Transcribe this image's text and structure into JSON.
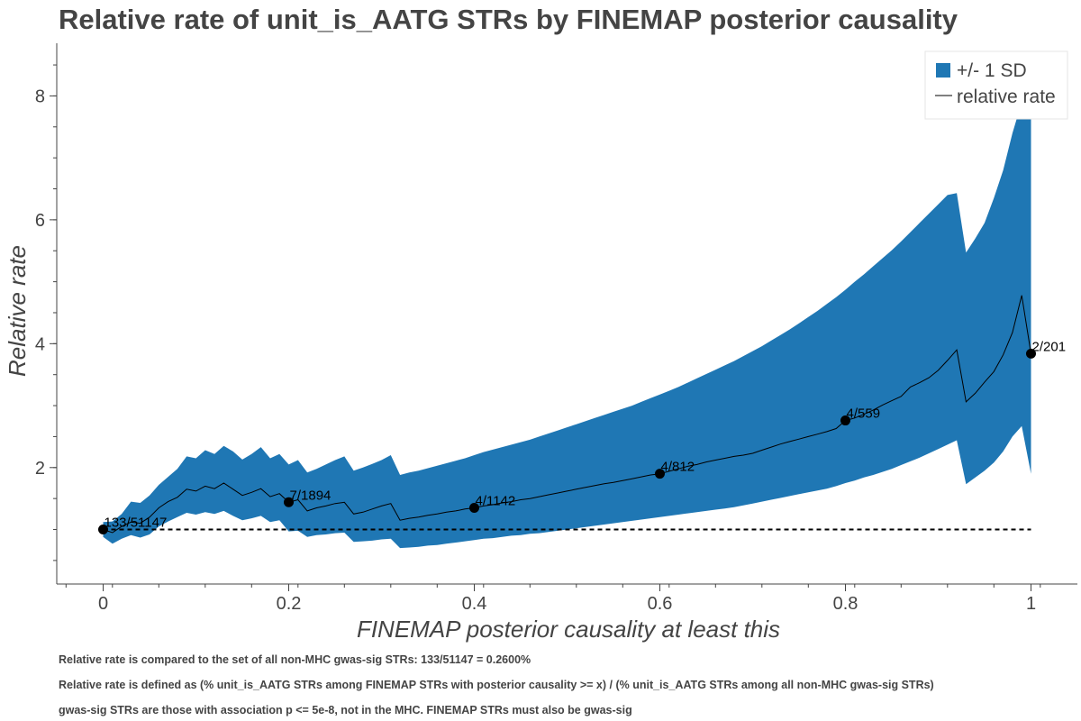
{
  "title": "Relative rate of unit_is_AATG STRs by FINEMAP posterior causality",
  "notes": [
    "Relative rate is compared to the set of all non-MHC gwas-sig STRs: 133/51147 = 0.2600%",
    "Relative rate is defined as (% unit_is_AATG STRs among FINEMAP STRs with posterior causality >= x) / (% unit_is_AATG STRs among all non-MHC gwas-sig STRs)",
    "gwas-sig STRs are those with association p <= 5e-8, not in the MHC. FINEMAP STRs must also be gwas-sig"
  ],
  "colors": {
    "band": "#1f77b4",
    "line": "#000000",
    "text": "#444444",
    "axis": "#444444"
  },
  "chart_data": {
    "type": "area",
    "xlabel": "FINEMAP posterior causality at least this",
    "ylabel": "Relative rate",
    "xlim": [
      -0.05,
      1.05
    ],
    "ylim": [
      0.12,
      8.85
    ],
    "xticks": [
      0,
      0.2,
      0.4,
      0.6,
      0.8,
      1
    ],
    "xtick_labels": [
      "0",
      "0.2",
      "0.4",
      "0.6",
      "0.8",
      "1"
    ],
    "yticks": [
      2,
      4,
      6,
      8
    ],
    "ytick_labels": [
      "2",
      "4",
      "6",
      "8"
    ],
    "legend": {
      "placement": "top-right",
      "entries": [
        "+/- 1 SD",
        "relative rate"
      ]
    },
    "reference_line": {
      "y": 1,
      "x_range": [
        0,
        1
      ],
      "style": "dashed"
    },
    "series": [
      {
        "name": "relative rate",
        "x": [
          0,
          0.01,
          0.02,
          0.03,
          0.04,
          0.05,
          0.06,
          0.07,
          0.08,
          0.09,
          0.1,
          0.11,
          0.12,
          0.13,
          0.14,
          0.15,
          0.16,
          0.17,
          0.18,
          0.19,
          0.2,
          0.21,
          0.22,
          0.23,
          0.24,
          0.25,
          0.26,
          0.27,
          0.28,
          0.29,
          0.3,
          0.31,
          0.32,
          0.33,
          0.34,
          0.35,
          0.36,
          0.37,
          0.38,
          0.39,
          0.4,
          0.41,
          0.42,
          0.43,
          0.44,
          0.45,
          0.46,
          0.47,
          0.48,
          0.49,
          0.5,
          0.51,
          0.52,
          0.53,
          0.54,
          0.55,
          0.56,
          0.57,
          0.58,
          0.59,
          0.6,
          0.61,
          0.62,
          0.63,
          0.64,
          0.65,
          0.66,
          0.67,
          0.68,
          0.69,
          0.7,
          0.71,
          0.72,
          0.73,
          0.74,
          0.75,
          0.76,
          0.77,
          0.78,
          0.79,
          0.8,
          0.81,
          0.82,
          0.83,
          0.84,
          0.85,
          0.86,
          0.87,
          0.88,
          0.89,
          0.9,
          0.91,
          0.92,
          0.93,
          0.94,
          0.95,
          0.96,
          0.97,
          0.98,
          0.99,
          1.0
        ],
        "y": [
          1.0,
          0.95,
          1.05,
          1.12,
          1.1,
          1.2,
          1.35,
          1.45,
          1.52,
          1.65,
          1.62,
          1.7,
          1.66,
          1.75,
          1.65,
          1.55,
          1.6,
          1.66,
          1.53,
          1.58,
          1.44,
          1.48,
          1.3,
          1.35,
          1.38,
          1.42,
          1.44,
          1.25,
          1.28,
          1.33,
          1.38,
          1.42,
          1.15,
          1.18,
          1.2,
          1.23,
          1.25,
          1.28,
          1.3,
          1.33,
          1.35,
          1.38,
          1.4,
          1.43,
          1.45,
          1.48,
          1.5,
          1.53,
          1.56,
          1.59,
          1.62,
          1.65,
          1.68,
          1.71,
          1.74,
          1.76,
          1.79,
          1.82,
          1.85,
          1.88,
          1.9,
          1.94,
          1.98,
          2.02,
          2.05,
          2.09,
          2.12,
          2.15,
          2.18,
          2.2,
          2.23,
          2.28,
          2.33,
          2.38,
          2.42,
          2.46,
          2.5,
          2.54,
          2.58,
          2.63,
          2.76,
          2.8,
          2.86,
          2.93,
          3.01,
          3.08,
          3.15,
          3.3,
          3.37,
          3.45,
          3.57,
          3.73,
          3.9,
          3.06,
          3.2,
          3.38,
          3.55,
          3.82,
          4.18,
          4.78,
          3.84
        ]
      },
      {
        "name": "+/- 1 SD",
        "x": [
          0,
          0.01,
          0.02,
          0.03,
          0.04,
          0.05,
          0.06,
          0.07,
          0.08,
          0.09,
          0.1,
          0.11,
          0.12,
          0.13,
          0.14,
          0.15,
          0.16,
          0.17,
          0.18,
          0.19,
          0.2,
          0.21,
          0.22,
          0.23,
          0.24,
          0.25,
          0.26,
          0.27,
          0.28,
          0.29,
          0.3,
          0.31,
          0.32,
          0.33,
          0.34,
          0.35,
          0.36,
          0.37,
          0.38,
          0.39,
          0.4,
          0.41,
          0.42,
          0.43,
          0.44,
          0.45,
          0.46,
          0.47,
          0.48,
          0.49,
          0.5,
          0.51,
          0.52,
          0.53,
          0.54,
          0.55,
          0.56,
          0.57,
          0.58,
          0.59,
          0.6,
          0.61,
          0.62,
          0.63,
          0.64,
          0.65,
          0.66,
          0.67,
          0.68,
          0.69,
          0.7,
          0.71,
          0.72,
          0.73,
          0.74,
          0.75,
          0.76,
          0.77,
          0.78,
          0.79,
          0.8,
          0.81,
          0.82,
          0.83,
          0.84,
          0.85,
          0.86,
          0.87,
          0.88,
          0.89,
          0.9,
          0.91,
          0.92,
          0.93,
          0.94,
          0.95,
          0.96,
          0.97,
          0.98,
          0.99,
          1.0
        ],
        "lower": [
          0.88,
          0.77,
          0.85,
          0.91,
          0.87,
          0.92,
          1.05,
          1.13,
          1.2,
          1.27,
          1.24,
          1.28,
          1.25,
          1.3,
          1.22,
          1.15,
          1.18,
          1.22,
          1.12,
          1.15,
          0.97,
          0.98,
          0.88,
          0.91,
          0.92,
          0.94,
          0.95,
          0.8,
          0.81,
          0.82,
          0.84,
          0.85,
          0.7,
          0.71,
          0.72,
          0.74,
          0.75,
          0.77,
          0.79,
          0.81,
          0.83,
          0.85,
          0.86,
          0.88,
          0.9,
          0.91,
          0.93,
          0.94,
          0.96,
          0.98,
          1.0,
          1.02,
          1.04,
          1.06,
          1.08,
          1.1,
          1.12,
          1.14,
          1.16,
          1.18,
          1.2,
          1.22,
          1.24,
          1.26,
          1.28,
          1.3,
          1.32,
          1.34,
          1.36,
          1.39,
          1.42,
          1.45,
          1.48,
          1.51,
          1.54,
          1.57,
          1.6,
          1.63,
          1.66,
          1.7,
          1.75,
          1.79,
          1.84,
          1.88,
          1.93,
          1.98,
          2.04,
          2.1,
          2.16,
          2.23,
          2.3,
          2.37,
          2.44,
          1.73,
          1.84,
          1.95,
          2.08,
          2.26,
          2.5,
          2.67,
          1.9
        ],
        "upper": [
          1.12,
          1.13,
          1.25,
          1.45,
          1.43,
          1.55,
          1.72,
          1.85,
          1.98,
          2.18,
          2.15,
          2.28,
          2.22,
          2.35,
          2.26,
          2.13,
          2.22,
          2.33,
          2.15,
          2.22,
          2.05,
          2.12,
          1.92,
          1.98,
          2.05,
          2.12,
          2.18,
          1.95,
          2.0,
          2.06,
          2.12,
          2.2,
          1.88,
          1.92,
          1.95,
          1.99,
          2.03,
          2.07,
          2.11,
          2.15,
          2.2,
          2.25,
          2.29,
          2.33,
          2.37,
          2.41,
          2.45,
          2.5,
          2.55,
          2.6,
          2.65,
          2.7,
          2.75,
          2.8,
          2.85,
          2.9,
          2.95,
          3.0,
          3.06,
          3.12,
          3.18,
          3.24,
          3.3,
          3.37,
          3.44,
          3.51,
          3.58,
          3.65,
          3.72,
          3.8,
          3.88,
          3.96,
          4.05,
          4.14,
          4.23,
          4.33,
          4.43,
          4.53,
          4.64,
          4.75,
          4.87,
          5.0,
          5.12,
          5.25,
          5.38,
          5.51,
          5.65,
          5.8,
          5.95,
          6.1,
          6.25,
          6.4,
          6.43,
          5.47,
          5.7,
          5.95,
          6.35,
          6.8,
          7.4,
          7.9,
          8.2
        ]
      }
    ],
    "annotated_points": [
      {
        "x": 0,
        "y": 1.0,
        "label": "133/51147"
      },
      {
        "x": 0.2,
        "y": 1.44,
        "label": "7/1894"
      },
      {
        "x": 0.4,
        "y": 1.35,
        "label": "4/1142"
      },
      {
        "x": 0.6,
        "y": 1.9,
        "label": "4/812"
      },
      {
        "x": 0.8,
        "y": 2.76,
        "label": "4/559"
      },
      {
        "x": 1.0,
        "y": 3.84,
        "label": "2/201"
      }
    ]
  }
}
